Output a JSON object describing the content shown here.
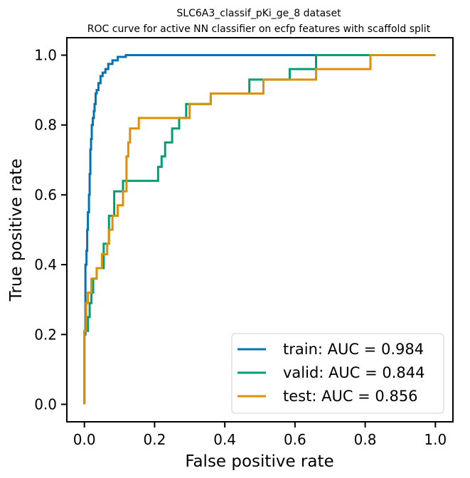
{
  "chart_data": {
    "type": "line",
    "title": "SLC6A3_classif_pKi_ge_8 dataset",
    "subtitle": "ROC curve for active NN classifier on ecfp features with scaffold split",
    "xlabel": "False positive rate",
    "ylabel": "True positive rate",
    "xlim": [
      -0.05,
      1.05
    ],
    "ylim": [
      -0.05,
      1.05
    ],
    "xticks": [
      "0.0",
      "0.2",
      "0.4",
      "0.6",
      "0.8",
      "1.0"
    ],
    "yticks": [
      "0.0",
      "0.2",
      "0.4",
      "0.6",
      "0.8",
      "1.0"
    ],
    "grid": false,
    "legend_position": "lower-right",
    "series": [
      {
        "name": "train: AUC = 0.984",
        "color": "#0173b2",
        "x": [
          0,
          0,
          0.003,
          0.003,
          0.006,
          0.006,
          0.008,
          0.008,
          0.01,
          0.01,
          0.013,
          0.013,
          0.015,
          0.015,
          0.017,
          0.017,
          0.019,
          0.019,
          0.021,
          0.021,
          0.024,
          0.024,
          0.027,
          0.027,
          0.029,
          0.029,
          0.032,
          0.032,
          0.035,
          0.035,
          0.04,
          0.04,
          0.046,
          0.046,
          0.052,
          0.052,
          0.06,
          0.06,
          0.068,
          0.068,
          0.08,
          0.08,
          0.095,
          0.095,
          0.118,
          0.118,
          0.66,
          1.0
        ],
        "y": [
          0,
          0.2,
          0.2,
          0.4,
          0.4,
          0.44,
          0.44,
          0.5,
          0.5,
          0.55,
          0.55,
          0.6,
          0.6,
          0.66,
          0.66,
          0.73,
          0.73,
          0.76,
          0.76,
          0.8,
          0.8,
          0.82,
          0.82,
          0.84,
          0.84,
          0.86,
          0.86,
          0.89,
          0.89,
          0.9,
          0.9,
          0.92,
          0.92,
          0.94,
          0.94,
          0.95,
          0.95,
          0.96,
          0.96,
          0.975,
          0.975,
          0.985,
          0.985,
          0.995,
          0.995,
          1.0,
          1.0,
          1.0
        ]
      },
      {
        "name": "valid: AUC = 0.844",
        "color": "#029e73",
        "x": [
          0,
          0,
          0.01,
          0.01,
          0.015,
          0.015,
          0.02,
          0.02,
          0.025,
          0.025,
          0.035,
          0.035,
          0.055,
          0.055,
          0.07,
          0.07,
          0.085,
          0.085,
          0.11,
          0.11,
          0.15,
          0.15,
          0.21,
          0.21,
          0.22,
          0.22,
          0.23,
          0.23,
          0.25,
          0.25,
          0.27,
          0.27,
          0.29,
          0.29,
          0.3,
          0.3,
          0.32,
          0.32,
          0.36,
          0.36,
          0.47,
          0.47,
          0.585,
          0.585,
          0.66,
          0.66,
          0.82,
          0.82,
          1.0
        ],
        "y": [
          0,
          0.21,
          0.21,
          0.25,
          0.25,
          0.29,
          0.29,
          0.32,
          0.32,
          0.36,
          0.36,
          0.39,
          0.39,
          0.46,
          0.46,
          0.54,
          0.54,
          0.61,
          0.61,
          0.64,
          0.64,
          0.64,
          0.64,
          0.68,
          0.68,
          0.71,
          0.71,
          0.75,
          0.75,
          0.79,
          0.79,
          0.82,
          0.82,
          0.86,
          0.86,
          0.86,
          0.86,
          0.86,
          0.86,
          0.89,
          0.89,
          0.93,
          0.93,
          0.96,
          0.96,
          1.0,
          1.0,
          1.0,
          1.0
        ]
      },
      {
        "name": "test: AUC = 0.856",
        "color": "#de8f05",
        "x": [
          0,
          0,
          0.005,
          0.005,
          0.01,
          0.01,
          0.02,
          0.02,
          0.035,
          0.035,
          0.05,
          0.05,
          0.065,
          0.065,
          0.07,
          0.07,
          0.08,
          0.08,
          0.095,
          0.095,
          0.11,
          0.11,
          0.12,
          0.12,
          0.125,
          0.125,
          0.13,
          0.13,
          0.155,
          0.155,
          0.27,
          0.27,
          0.3,
          0.3,
          0.36,
          0.36,
          0.51,
          0.51,
          0.66,
          0.66,
          0.815,
          0.815,
          1.0
        ],
        "y": [
          0,
          0.21,
          0.21,
          0.29,
          0.29,
          0.32,
          0.32,
          0.36,
          0.36,
          0.39,
          0.39,
          0.43,
          0.43,
          0.46,
          0.46,
          0.5,
          0.5,
          0.54,
          0.54,
          0.57,
          0.57,
          0.61,
          0.61,
          0.71,
          0.71,
          0.75,
          0.75,
          0.79,
          0.79,
          0.82,
          0.82,
          0.82,
          0.82,
          0.86,
          0.86,
          0.89,
          0.89,
          0.93,
          0.93,
          0.96,
          0.96,
          1.0,
          1.0
        ]
      }
    ]
  }
}
